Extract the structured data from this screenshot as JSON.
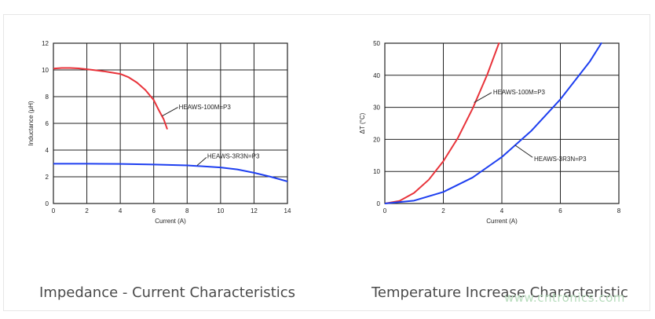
{
  "captions": {
    "left": "Impedance - Current Characteristics",
    "right": "Temperature Increase Characteristic"
  },
  "watermark": "www.cntronics.com",
  "chart_data": [
    {
      "type": "line",
      "xlabel": "Current (A)",
      "ylabel": "Inductance (μH)",
      "xlim": [
        0,
        14
      ],
      "ylim": [
        0,
        12
      ],
      "xticks": [
        0,
        2,
        4,
        6,
        8,
        10,
        12,
        14
      ],
      "yticks": [
        0,
        2,
        4,
        6,
        8,
        10,
        12
      ],
      "grid": true,
      "series": [
        {
          "name": "HEAWS-100M=P3",
          "color": "#e8333a",
          "x": [
            0,
            0.5,
            1,
            1.5,
            2,
            2.5,
            3,
            3.5,
            4,
            4.5,
            5,
            5.5,
            6,
            6.3,
            6.6,
            6.8
          ],
          "y": [
            10.1,
            10.15,
            10.15,
            10.12,
            10.05,
            9.98,
            9.9,
            9.8,
            9.7,
            9.45,
            9.05,
            8.5,
            7.75,
            7.0,
            6.3,
            5.6
          ]
        },
        {
          "name": "HEAWS-3R3N=P3",
          "color": "#1e3ff0",
          "x": [
            0,
            2,
            4,
            6,
            8,
            9,
            10,
            11,
            12,
            13,
            14
          ],
          "y": [
            2.98,
            2.98,
            2.96,
            2.92,
            2.85,
            2.78,
            2.7,
            2.55,
            2.3,
            2.0,
            1.65
          ]
        }
      ],
      "annotations": [
        {
          "text": "HEAWS-100M=P3",
          "x": 7.5,
          "y": 7.25
        },
        {
          "text": "HEAWS-3R3N=P3",
          "x": 9.2,
          "y": 3.55
        }
      ]
    },
    {
      "type": "line",
      "xlabel": "Current (A)",
      "ylabel": "ΔT (°C)",
      "xlim": [
        0,
        8
      ],
      "ylim": [
        0,
        50
      ],
      "xticks": [
        0,
        2,
        4,
        6,
        8
      ],
      "yticks": [
        0,
        10,
        20,
        30,
        40,
        50
      ],
      "grid": true,
      "series": [
        {
          "name": "HEAWS-100M=P3",
          "color": "#e8333a",
          "x": [
            0,
            0.5,
            1,
            1.5,
            2,
            2.5,
            3,
            3.5,
            3.9
          ],
          "y": [
            0,
            0.8,
            3.3,
            7.4,
            13.2,
            20.5,
            29.6,
            40.2,
            50
          ]
        },
        {
          "name": "HEAWS-3R3N=P3",
          "color": "#1e3ff0",
          "x": [
            0,
            1,
            2,
            3,
            4,
            5,
            6,
            7,
            7.4
          ],
          "y": [
            0,
            0.9,
            3.6,
            8.1,
            14.5,
            22.6,
            32.5,
            44.2,
            50
          ]
        }
      ],
      "annotations": [
        {
          "text": "HEAWS-100M=P3",
          "x": 3.7,
          "y": 34.8
        },
        {
          "text": "HEAWS-3R3N=P3",
          "x": 5.1,
          "y": 14
        }
      ]
    }
  ]
}
